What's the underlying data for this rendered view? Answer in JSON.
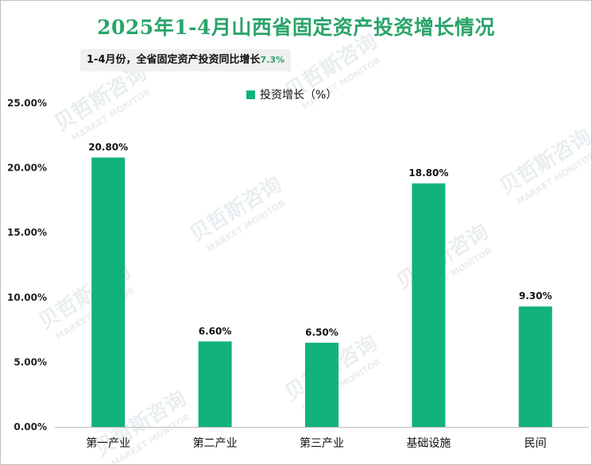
{
  "title": "2025年1-4月山西省固定资产投资增长情况",
  "note": {
    "text": "1-4月份，全省固定资产投资同比增长",
    "value": "7.3%"
  },
  "watermark": {
    "cn": "贝哲斯咨询",
    "en": "MARKET MONITOR"
  },
  "colors": {
    "title": "#2aa46a",
    "bar": "#12b27c",
    "axis": "#bfbfbf"
  },
  "chart_data": {
    "type": "bar",
    "categories": [
      "第一产业",
      "第二产业",
      "第三产业",
      "基础设施",
      "民间"
    ],
    "series": [
      {
        "name": "投资增长（%）",
        "values": [
          20.8,
          6.6,
          6.5,
          18.8,
          9.3
        ],
        "data_labels": [
          "20.80%",
          "6.60%",
          "6.50%",
          "18.80%",
          "9.30%"
        ]
      }
    ],
    "ylim": [
      0,
      25
    ],
    "yticks": [
      0,
      5,
      10,
      15,
      20,
      25
    ],
    "ytick_labels": [
      "0.00%",
      "5.00%",
      "10.00%",
      "15.00%",
      "20.00%",
      "25.00%"
    ],
    "grid": false,
    "legend_position": "top"
  }
}
